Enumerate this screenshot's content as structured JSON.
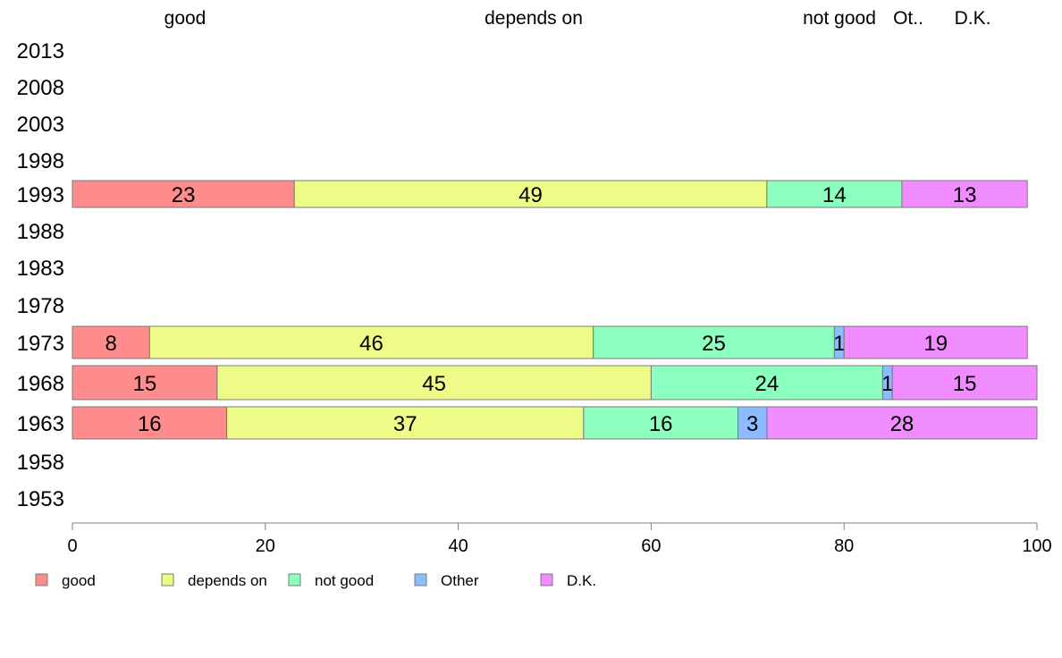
{
  "chart_data": {
    "type": "bar",
    "orientation": "horizontal",
    "stacked": true,
    "categories": [
      "2013",
      "2008",
      "2003",
      "1998",
      "1993",
      "1988",
      "1983",
      "1978",
      "1973",
      "1968",
      "1963",
      "1958",
      "1953"
    ],
    "series": [
      {
        "name": "good",
        "color": "#ff8c8c",
        "values": [
          null,
          null,
          null,
          null,
          23,
          null,
          null,
          null,
          8,
          15,
          16,
          null,
          null
        ]
      },
      {
        "name": "depends on",
        "color": "#ecfc87",
        "values": [
          null,
          null,
          null,
          null,
          49,
          null,
          null,
          null,
          46,
          45,
          37,
          null,
          null
        ]
      },
      {
        "name": "not good",
        "color": "#8cffbe",
        "values": [
          null,
          null,
          null,
          null,
          14,
          null,
          null,
          null,
          25,
          24,
          16,
          null,
          null
        ]
      },
      {
        "name": "Other",
        "color": "#8cbcff",
        "values": [
          null,
          null,
          null,
          null,
          0,
          null,
          null,
          null,
          1,
          1,
          3,
          null,
          null
        ]
      },
      {
        "name": "D.K.",
        "color": "#f08cff",
        "values": [
          null,
          null,
          null,
          null,
          13,
          null,
          null,
          null,
          19,
          15,
          28,
          null,
          null
        ]
      }
    ],
    "labels": [
      [
        null,
        null,
        null,
        null,
        "23",
        null,
        null,
        null,
        "8",
        "15",
        "16",
        null,
        null
      ],
      [
        null,
        null,
        null,
        null,
        "49",
        null,
        null,
        null,
        "46",
        "45",
        "37",
        null,
        null
      ],
      [
        null,
        null,
        null,
        null,
        "14",
        null,
        null,
        null,
        "25",
        "24",
        "16",
        null,
        null
      ],
      [
        null,
        null,
        null,
        null,
        "",
        null,
        null,
        null,
        "1",
        "1",
        "3",
        null,
        null
      ],
      [
        null,
        null,
        null,
        null,
        "13",
        null,
        null,
        null,
        "19",
        "15",
        "28",
        null,
        null
      ]
    ],
    "top_labels": [
      "good",
      "depends on",
      "not good",
      "Ot..",
      "D.K."
    ],
    "xlim": [
      0,
      100
    ],
    "xticks": [
      0,
      20,
      40,
      60,
      80,
      100
    ],
    "legend_position": "bottom",
    "grid": false
  }
}
